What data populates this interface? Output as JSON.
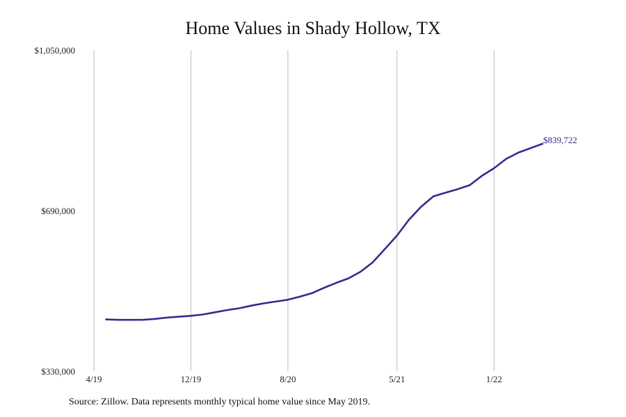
{
  "chart_data": {
    "type": "line",
    "title": "Home Values in Shady Hollow, TX",
    "source_note": "Source: Zillow. Data represents monthly typical home value since May 2019.",
    "xlabel": "",
    "ylabel": "",
    "ylim": [
      330000,
      1050000
    ],
    "y_ticks": [
      330000,
      690000,
      1050000
    ],
    "y_tick_labels": [
      "$330,000",
      "$690,000",
      "$1,050,000"
    ],
    "x_ticks": [
      "2019-04",
      "2019-12",
      "2020-08",
      "2021-05",
      "2022-01"
    ],
    "x_tick_labels": [
      "4/19",
      "12/19",
      "8/20",
      "5/21",
      "1/22"
    ],
    "vertical_gridlines": true,
    "line_color": "#332b8c",
    "grid_color": "#bdbdbd",
    "end_label": "$839,722",
    "series": [
      {
        "x": [
          "2019-05",
          "2019-06",
          "2019-07",
          "2019-08",
          "2019-09",
          "2019-10",
          "2019-11",
          "2019-12",
          "2020-01",
          "2020-02",
          "2020-03",
          "2020-04",
          "2020-05",
          "2020-06",
          "2020-07",
          "2020-08",
          "2020-09",
          "2020-10",
          "2020-11",
          "2020-12",
          "2021-01",
          "2021-02",
          "2021-03",
          "2021-04",
          "2021-05",
          "2021-06",
          "2021-07",
          "2021-08",
          "2021-09",
          "2021-10",
          "2021-11",
          "2021-12",
          "2022-01",
          "2022-02",
          "2022-03",
          "2022-04",
          "2022-05"
        ],
        "values": [
          446000,
          445000,
          445000,
          445000,
          447000,
          450000,
          452000,
          454000,
          457000,
          462000,
          467000,
          471000,
          477000,
          482000,
          486000,
          490000,
          497000,
          505000,
          517000,
          528000,
          538000,
          553000,
          574000,
          604000,
          634000,
          670000,
          699000,
          722000,
          730000,
          738000,
          747000,
          768000,
          785000,
          806000,
          820000,
          830000,
          839722
        ]
      }
    ]
  }
}
